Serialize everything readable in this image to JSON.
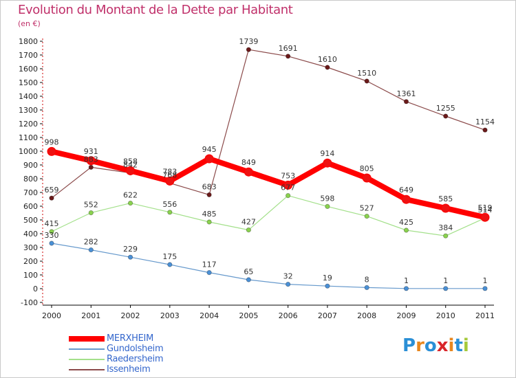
{
  "title": "Evolution du Montant de la Dette par Habitant",
  "subtitle": "(en €)",
  "logo": {
    "text": "Proxiti",
    "letter_colors": [
      "#2a8fd6",
      "#e8871e",
      "#2a8fd6",
      "#d9252a",
      "#e8871e",
      "#2a8fd6",
      "#a5c93b"
    ]
  },
  "chart_data": {
    "type": "line",
    "title": "Evolution du Montant de la Dette par Habitant",
    "subtitle": "(en €)",
    "xlabel": "",
    "ylabel": "",
    "x": [
      "2000",
      "2001",
      "2002",
      "2003",
      "2004",
      "2005",
      "2006",
      "2007",
      "2008",
      "2009",
      "2010",
      "2011"
    ],
    "ylim": [
      -100,
      1800
    ],
    "yticks": [
      -100,
      0,
      100,
      200,
      300,
      400,
      500,
      600,
      700,
      800,
      900,
      1000,
      1100,
      1200,
      1300,
      1400,
      1500,
      1600,
      1700,
      1800
    ],
    "grid": false,
    "legend_position": "bottom-left",
    "series": [
      {
        "name": "MERXHEIM",
        "color": "#ff0000",
        "marker_fill": "#ee1111",
        "emphasis": true,
        "values": [
          998,
          931,
          858,
          783,
          945,
          849,
          753,
          914,
          805,
          649,
          585,
          519
        ]
      },
      {
        "name": "Gundolsheim",
        "color": "#6699cc",
        "marker_fill": "#4a90d6",
        "emphasis": false,
        "values": [
          330,
          282,
          229,
          175,
          117,
          65,
          32,
          19,
          8,
          1,
          1,
          1
        ]
      },
      {
        "name": "Raedersheim",
        "color": "#a3e08a",
        "marker_fill": "#8ad24e",
        "emphasis": false,
        "values": [
          415,
          552,
          622,
          556,
          485,
          427,
          677,
          598,
          527,
          425,
          384,
          514
        ]
      },
      {
        "name": "Issenheim",
        "color": "#8b4a4a",
        "marker_fill": "#6b1a1a",
        "emphasis": false,
        "values": [
          659,
          883,
          842,
          768,
          683,
          1739,
          1691,
          1610,
          1510,
          1361,
          1255,
          1154
        ]
      }
    ]
  }
}
